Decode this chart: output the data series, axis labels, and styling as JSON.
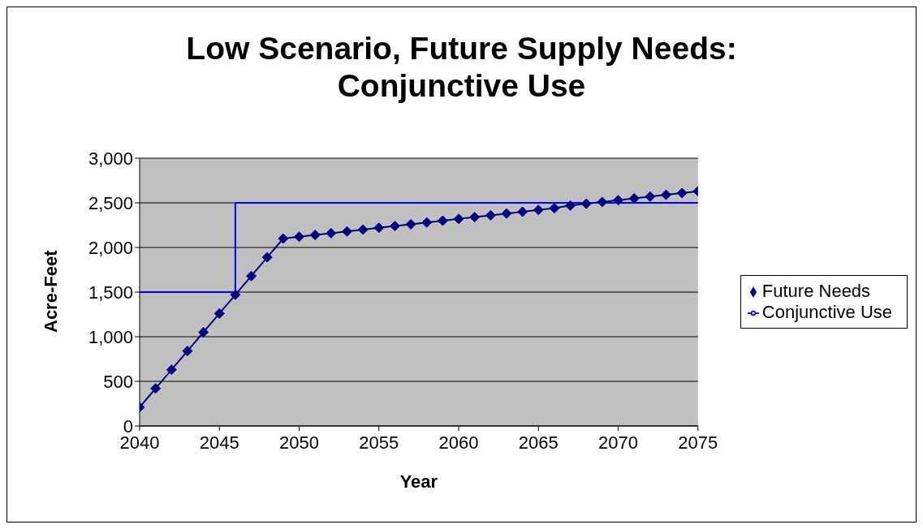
{
  "chart_data": {
    "type": "line",
    "title": "Low Scenario, Future Supply Needs: Conjunctive Use",
    "xlabel": "Year",
    "ylabel": "Acre-Feet",
    "xlim": [
      2040,
      2075
    ],
    "xticks": [
      2040,
      2045,
      2050,
      2055,
      2060,
      2065,
      2070,
      2075
    ],
    "ylim": [
      0,
      3000
    ],
    "yticks": [
      0,
      500,
      {
        "value": 1000,
        "label": "1,000"
      },
      {
        "value": 1500,
        "label": "1,500"
      },
      {
        "value": 2000,
        "label": "2,000"
      },
      {
        "value": 2500,
        "label": "2,500"
      },
      {
        "value": 3000,
        "label": "3,000"
      }
    ],
    "grid": "y",
    "legend": "right",
    "marker": "diamond",
    "series": [
      {
        "name": "Future Needs",
        "type": "line",
        "color": "#000080",
        "x": [
          2040,
          2041,
          2042,
          2043,
          2044,
          2045,
          2046,
          2047,
          2048,
          2049,
          2050,
          2051,
          2052,
          2053,
          2054,
          2055,
          2056,
          2057,
          2058,
          2059,
          2060,
          2061,
          2062,
          2063,
          2064,
          2065,
          2066,
          2067,
          2068,
          2069,
          2070,
          2071,
          2072,
          2073,
          2074,
          2075
        ],
        "values": [
          210,
          420,
          630,
          840,
          1050,
          1260,
          1470,
          1680,
          1890,
          2100,
          2120,
          2140,
          2160,
          2180,
          2200,
          2220,
          2240,
          2260,
          2280,
          2300,
          2320,
          2340,
          2360,
          2380,
          2400,
          2420,
          2440,
          2470,
          2490,
          2510,
          2530,
          2550,
          2570,
          2590,
          2610,
          2630
        ]
      },
      {
        "name": "Conjunctive Use",
        "type": "step",
        "color": "#0000ff",
        "marker": "none",
        "x": [
          2040,
          2046,
          2075
        ],
        "values": [
          1500,
          2500,
          2500
        ]
      }
    ]
  }
}
